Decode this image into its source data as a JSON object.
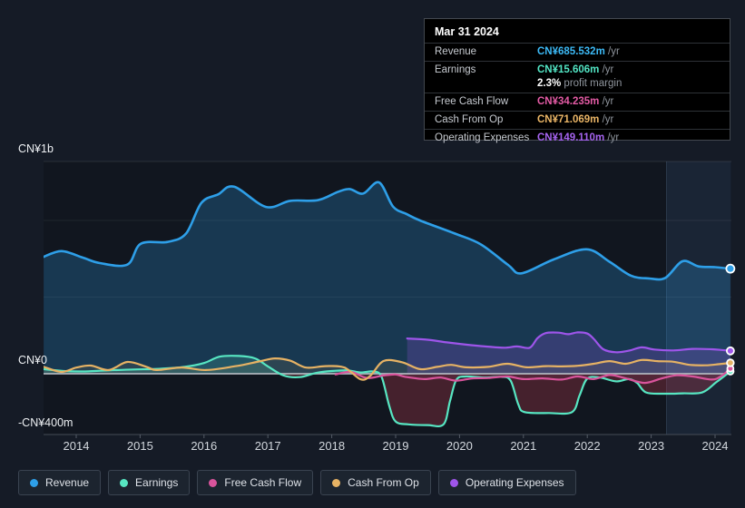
{
  "tooltip": {
    "date": "Mar 31 2024",
    "rows": [
      {
        "label": "Revenue",
        "value": "CN¥685.532m",
        "suffix": "/yr",
        "color": "#3cb9f5"
      },
      {
        "label": "Earnings",
        "value": "CN¥15.606m",
        "suffix": "/yr",
        "color": "#52e5c4",
        "sub_value": "2.3%",
        "sub_text": "profit margin"
      },
      {
        "label": "Free Cash Flow",
        "value": "CN¥34.235m",
        "suffix": "/yr",
        "color": "#e45ba5"
      },
      {
        "label": "Cash From Op",
        "value": "CN¥71.069m",
        "suffix": "/yr",
        "color": "#eab566"
      },
      {
        "label": "Operating Expenses",
        "value": "CN¥149.110m",
        "suffix": "/yr",
        "color": "#a664f0"
      }
    ]
  },
  "legend": {
    "items": [
      {
        "id": "revenue",
        "label": "Revenue",
        "color": "#2e9fe8"
      },
      {
        "id": "earnings",
        "label": "Earnings",
        "color": "#57e6c2"
      },
      {
        "id": "fcf",
        "label": "Free Cash Flow",
        "color": "#d9549c"
      },
      {
        "id": "cashop",
        "label": "Cash From Op",
        "color": "#e6b264"
      },
      {
        "id": "opex",
        "label": "Operating Expenses",
        "color": "#9e55ea"
      }
    ]
  },
  "chart_data": {
    "type": "area",
    "unit": "CN¥ millions",
    "x_range": [
      2013.49,
      2024.24
    ],
    "x_ticks": [
      2014,
      2015,
      2016,
      2017,
      2018,
      2019,
      2020,
      2021,
      2022,
      2023,
      2024
    ],
    "y_axis_labels": [
      {
        "text": "CN¥1b",
        "value": 1000
      },
      {
        "text": "CN¥0",
        "value": 0
      },
      {
        "text": "-CN¥400m",
        "value": -400
      }
    ],
    "y_gridline_values": [
      1000,
      500,
      0,
      -400
    ],
    "highlight_period": [
      2023.24,
      2024.25
    ],
    "series": [
      {
        "id": "revenue",
        "name": "Revenue",
        "color": "#2e9fe8",
        "fill": "full",
        "fill_opacity": 0.25,
        "line_width": 2.6,
        "marker_r": 4.5,
        "points": [
          [
            2013.49,
            763
          ],
          [
            2013.77,
            800
          ],
          [
            2014.1,
            758
          ],
          [
            2014.37,
            722
          ],
          [
            2014.8,
            712
          ],
          [
            2015.01,
            848
          ],
          [
            2015.43,
            860
          ],
          [
            2015.72,
            915
          ],
          [
            2015.96,
            1115
          ],
          [
            2016.22,
            1170
          ],
          [
            2016.47,
            1220
          ],
          [
            2016.97,
            1088
          ],
          [
            2017.35,
            1128
          ],
          [
            2017.78,
            1132
          ],
          [
            2018.09,
            1185
          ],
          [
            2018.28,
            1205
          ],
          [
            2018.49,
            1175
          ],
          [
            2018.74,
            1248
          ],
          [
            2018.96,
            1090
          ],
          [
            2019.17,
            1042
          ],
          [
            2019.38,
            1000
          ],
          [
            2019.91,
            917
          ],
          [
            2020.33,
            845
          ],
          [
            2020.76,
            710
          ],
          [
            2020.97,
            655
          ],
          [
            2021.47,
            745
          ],
          [
            2021.99,
            812
          ],
          [
            2022.35,
            730
          ],
          [
            2022.68,
            640
          ],
          [
            2022.96,
            622
          ],
          [
            2023.22,
            625
          ],
          [
            2023.49,
            734
          ],
          [
            2023.74,
            700
          ],
          [
            2024.0,
            695
          ],
          [
            2024.24,
            685.5
          ]
        ]
      },
      {
        "id": "earnings",
        "name": "Earnings",
        "color": "#57e6c2",
        "fill": "split",
        "fill_opacity": 0.18,
        "negative_fill": "#d44054",
        "negative_opacity": 0.27,
        "line_width": 2.2,
        "marker_r": 3.6,
        "points": [
          [
            2013.49,
            30
          ],
          [
            2013.8,
            18
          ],
          [
            2014.1,
            15
          ],
          [
            2014.5,
            22
          ],
          [
            2014.9,
            28
          ],
          [
            2015.3,
            32
          ],
          [
            2015.7,
            45
          ],
          [
            2016.0,
            70
          ],
          [
            2016.25,
            112
          ],
          [
            2016.55,
            116
          ],
          [
            2016.8,
            100
          ],
          [
            2017.0,
            48
          ],
          [
            2017.25,
            -12
          ],
          [
            2017.5,
            -22
          ],
          [
            2017.75,
            5
          ],
          [
            2018.0,
            18
          ],
          [
            2018.25,
            22
          ],
          [
            2018.45,
            8
          ],
          [
            2018.65,
            15
          ],
          [
            2018.78,
            -20
          ],
          [
            2018.9,
            -210
          ],
          [
            2019.0,
            -312
          ],
          [
            2019.2,
            -330
          ],
          [
            2019.5,
            -335
          ],
          [
            2019.75,
            -330
          ],
          [
            2019.85,
            -180
          ],
          [
            2019.95,
            -40
          ],
          [
            2020.1,
            -18
          ],
          [
            2020.4,
            -25
          ],
          [
            2020.65,
            -20
          ],
          [
            2020.8,
            -45
          ],
          [
            2020.92,
            -200
          ],
          [
            2021.02,
            -250
          ],
          [
            2021.4,
            -256
          ],
          [
            2021.76,
            -250
          ],
          [
            2021.88,
            -140
          ],
          [
            2022.0,
            -32
          ],
          [
            2022.2,
            -25
          ],
          [
            2022.45,
            -50
          ],
          [
            2022.65,
            -35
          ],
          [
            2022.78,
            -60
          ],
          [
            2022.92,
            -122
          ],
          [
            2023.2,
            -130
          ],
          [
            2023.5,
            -128
          ],
          [
            2023.8,
            -122
          ],
          [
            2024.02,
            -55
          ],
          [
            2024.24,
            15.6
          ]
        ]
      },
      {
        "id": "opex",
        "name": "Operating Expenses",
        "color": "#9e55ea",
        "fill": "full",
        "fill_opacity": 0.22,
        "line_width": 2.2,
        "marker_r": 4,
        "points": [
          [
            2019.18,
            230
          ],
          [
            2019.5,
            222
          ],
          [
            2019.8,
            205
          ],
          [
            2020.1,
            190
          ],
          [
            2020.4,
            178
          ],
          [
            2020.7,
            170
          ],
          [
            2020.9,
            178
          ],
          [
            2021.1,
            170
          ],
          [
            2021.22,
            232
          ],
          [
            2021.35,
            265
          ],
          [
            2021.55,
            268
          ],
          [
            2021.7,
            258
          ],
          [
            2021.85,
            270
          ],
          [
            2022.0,
            262
          ],
          [
            2022.1,
            228
          ],
          [
            2022.25,
            160
          ],
          [
            2022.45,
            140
          ],
          [
            2022.65,
            150
          ],
          [
            2022.85,
            172
          ],
          [
            2023.05,
            158
          ],
          [
            2023.35,
            152
          ],
          [
            2023.65,
            162
          ],
          [
            2023.95,
            160
          ],
          [
            2024.1,
            155
          ],
          [
            2024.24,
            149.1
          ]
        ]
      },
      {
        "id": "fcf",
        "name": "Free Cash Flow",
        "color": "#d9549c",
        "fill": "full",
        "fill_opacity": 0.1,
        "line_width": 2.2,
        "marker_r": 3.4,
        "points": [
          [
            2018.06,
            -5
          ],
          [
            2018.3,
            12
          ],
          [
            2018.55,
            -28
          ],
          [
            2018.8,
            -12
          ],
          [
            2019.0,
            -5
          ],
          [
            2019.15,
            -20
          ],
          [
            2019.45,
            -35
          ],
          [
            2019.7,
            -25
          ],
          [
            2019.95,
            -45
          ],
          [
            2020.2,
            -30
          ],
          [
            2020.45,
            -28
          ],
          [
            2020.75,
            -18
          ],
          [
            2021.0,
            -35
          ],
          [
            2021.3,
            -30
          ],
          [
            2021.6,
            -38
          ],
          [
            2021.85,
            -18
          ],
          [
            2022.1,
            -35
          ],
          [
            2022.35,
            -8
          ],
          [
            2022.6,
            -30
          ],
          [
            2022.9,
            -60
          ],
          [
            2023.15,
            -32
          ],
          [
            2023.4,
            -10
          ],
          [
            2023.65,
            -18
          ],
          [
            2023.95,
            -38
          ],
          [
            2024.1,
            -15
          ],
          [
            2024.24,
            34.2
          ]
        ]
      },
      {
        "id": "cashop",
        "name": "Cash From Op",
        "color": "#e6b264",
        "fill": "full",
        "fill_opacity": 0.1,
        "line_width": 2.2,
        "marker_r": 3.8,
        "points": [
          [
            2013.49,
            45
          ],
          [
            2013.77,
            12
          ],
          [
            2014.0,
            40
          ],
          [
            2014.23,
            53
          ],
          [
            2014.51,
            24
          ],
          [
            2014.8,
            77
          ],
          [
            2015.1,
            45
          ],
          [
            2015.26,
            24
          ],
          [
            2015.65,
            41
          ],
          [
            2016.03,
            24
          ],
          [
            2016.5,
            50
          ],
          [
            2016.86,
            80
          ],
          [
            2017.11,
            100
          ],
          [
            2017.35,
            85
          ],
          [
            2017.6,
            40
          ],
          [
            2017.9,
            50
          ],
          [
            2018.2,
            40
          ],
          [
            2018.45,
            -36
          ],
          [
            2018.6,
            -15
          ],
          [
            2018.81,
            83
          ],
          [
            2019.1,
            75
          ],
          [
            2019.38,
            30
          ],
          [
            2019.65,
            45
          ],
          [
            2019.87,
            58
          ],
          [
            2020.1,
            42
          ],
          [
            2020.45,
            45
          ],
          [
            2020.75,
            65
          ],
          [
            2021.05,
            42
          ],
          [
            2021.35,
            50
          ],
          [
            2021.6,
            48
          ],
          [
            2021.85,
            52
          ],
          [
            2022.1,
            65
          ],
          [
            2022.35,
            82
          ],
          [
            2022.6,
            65
          ],
          [
            2022.85,
            90
          ],
          [
            2023.1,
            82
          ],
          [
            2023.35,
            78
          ],
          [
            2023.6,
            58
          ],
          [
            2023.85,
            55
          ],
          [
            2024.05,
            62
          ],
          [
            2024.24,
            71.1
          ]
        ]
      }
    ]
  }
}
